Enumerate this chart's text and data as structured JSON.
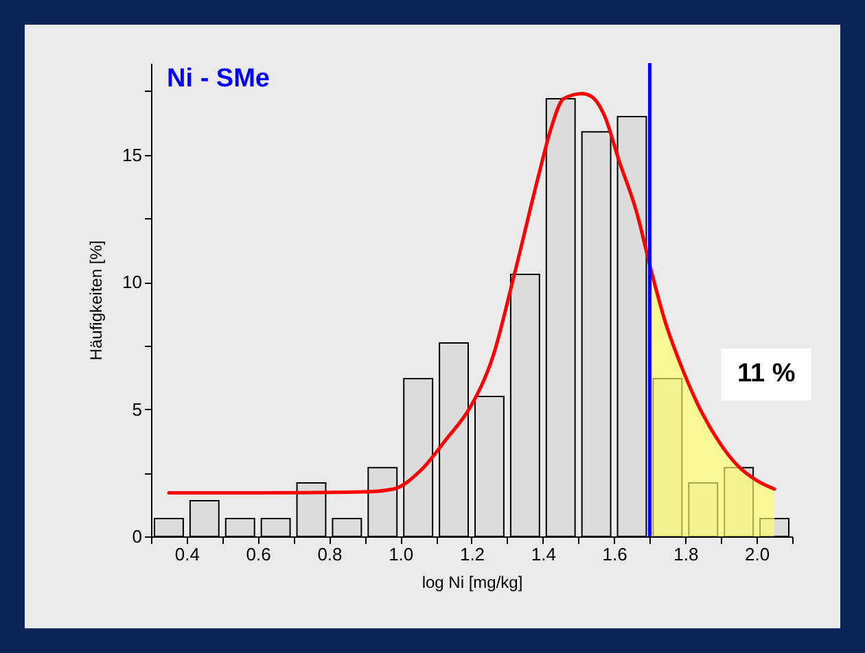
{
  "chart_data": {
    "type": "histogram",
    "title": "Ni - SMe",
    "xlabel": "log Ni [mg/kg]",
    "ylabel": "Häufigkeiten [%]",
    "bins": [
      0.3,
      0.4,
      0.5,
      0.6,
      0.7,
      0.8,
      0.9,
      1.0,
      1.1,
      1.2,
      1.3,
      1.4,
      1.5,
      1.6,
      1.7,
      1.8,
      1.9,
      2.0,
      2.1
    ],
    "values": [
      0.7,
      1.4,
      0.7,
      0.7,
      2.1,
      0.7,
      2.7,
      6.2,
      7.6,
      5.5,
      10.3,
      17.2,
      15.9,
      16.5,
      6.2,
      2.1,
      2.7,
      0.7
    ],
    "color": "#dcdcdc",
    "series": [
      {
        "type": "area",
        "color": "#ffff66",
        "x": [
          1.7,
          1.742,
          1.794,
          1.845,
          1.897,
          1.948,
          2.0,
          2.05
        ],
        "values": [
          10.6,
          8.5,
          6.5,
          4.9,
          3.66,
          2.76,
          2.2,
          1.86
        ]
      },
      {
        "type": "line",
        "color": "#ff0000",
        "x": [
          0.35,
          0.6,
          0.9,
          0.98,
          1.056,
          1.13,
          1.197,
          1.26,
          1.32,
          1.39,
          1.42,
          1.458,
          1.51,
          1.535,
          1.574,
          1.613,
          1.664,
          1.703,
          1.742,
          1.794,
          1.845,
          1.897,
          1.948,
          2.0,
          2.05
        ],
        "values": [
          1.71,
          1.71,
          1.75,
          1.86,
          2.58,
          3.84,
          5.1,
          7.08,
          10.3,
          14.3,
          15.9,
          17.2,
          17.4,
          17.3,
          16.5,
          14.8,
          12.7,
          10.5,
          8.5,
          6.5,
          4.9,
          3.66,
          2.76,
          2.2,
          1.86
        ]
      }
    ],
    "ref_lines": [
      {
        "axis": "x",
        "value": 1.7,
        "color": "#0000ff"
      }
    ],
    "annotations": [
      "11 %"
    ],
    "xlim": [
      0.3,
      2.1
    ],
    "xticks": [
      {
        "value": 0.3,
        "label": null
      },
      0.4,
      {
        "value": 0.5,
        "label": null
      },
      0.6,
      {
        "value": 0.7,
        "label": null
      },
      0.8,
      {
        "value": 0.9,
        "label": null
      },
      {
        "value": 1.0,
        "label": "1.0"
      },
      {
        "value": 1.1,
        "label": null
      },
      1.2,
      {
        "value": 1.3,
        "label": null
      },
      1.4,
      {
        "value": 1.5,
        "label": null
      },
      1.6,
      {
        "value": 1.7,
        "label": null
      },
      1.8,
      {
        "value": 1.9,
        "label": null
      },
      {
        "value": 2.0,
        "label": "2.0"
      },
      {
        "value": 2.1,
        "label": null
      }
    ],
    "ylim": [
      0,
      18.6
    ],
    "yticks": [
      0,
      {
        "value": 2.5,
        "label": null
      },
      5,
      {
        "value": 7.5,
        "label": null
      },
      10,
      {
        "value": 12.5,
        "label": null
      },
      15,
      {
        "value": 17.5,
        "label": null
      }
    ],
    "grid": false
  }
}
